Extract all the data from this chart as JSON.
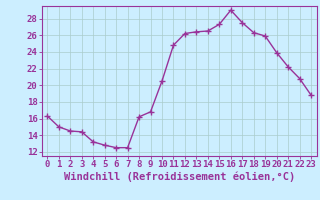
{
  "x": [
    0,
    1,
    2,
    3,
    4,
    5,
    6,
    7,
    8,
    9,
    10,
    11,
    12,
    13,
    14,
    15,
    16,
    17,
    18,
    19,
    20,
    21,
    22,
    23
  ],
  "y": [
    16.3,
    15.0,
    14.5,
    14.4,
    13.2,
    12.8,
    12.5,
    12.5,
    16.2,
    16.8,
    20.5,
    24.8,
    26.2,
    26.4,
    26.5,
    27.3,
    29.0,
    27.5,
    26.3,
    25.9,
    23.9,
    22.2,
    20.8,
    18.8
  ],
  "line_color": "#993399",
  "marker": "+",
  "marker_size": 4,
  "bg_color": "#cceeff",
  "grid_color": "#aacccc",
  "xlabel": "Windchill (Refroidissement éolien,°C)",
  "xlim_min": -0.5,
  "xlim_max": 23.5,
  "ylim_min": 11.5,
  "ylim_max": 29.5,
  "xticks": [
    0,
    1,
    2,
    3,
    4,
    5,
    6,
    7,
    8,
    9,
    10,
    11,
    12,
    13,
    14,
    15,
    16,
    17,
    18,
    19,
    20,
    21,
    22,
    23
  ],
  "yticks": [
    12,
    14,
    16,
    18,
    20,
    22,
    24,
    26,
    28
  ],
  "font_color": "#993399",
  "font_size": 6.5,
  "xlabel_fontsize": 7.5,
  "linewidth": 1.0,
  "markeredgewidth": 1.0
}
